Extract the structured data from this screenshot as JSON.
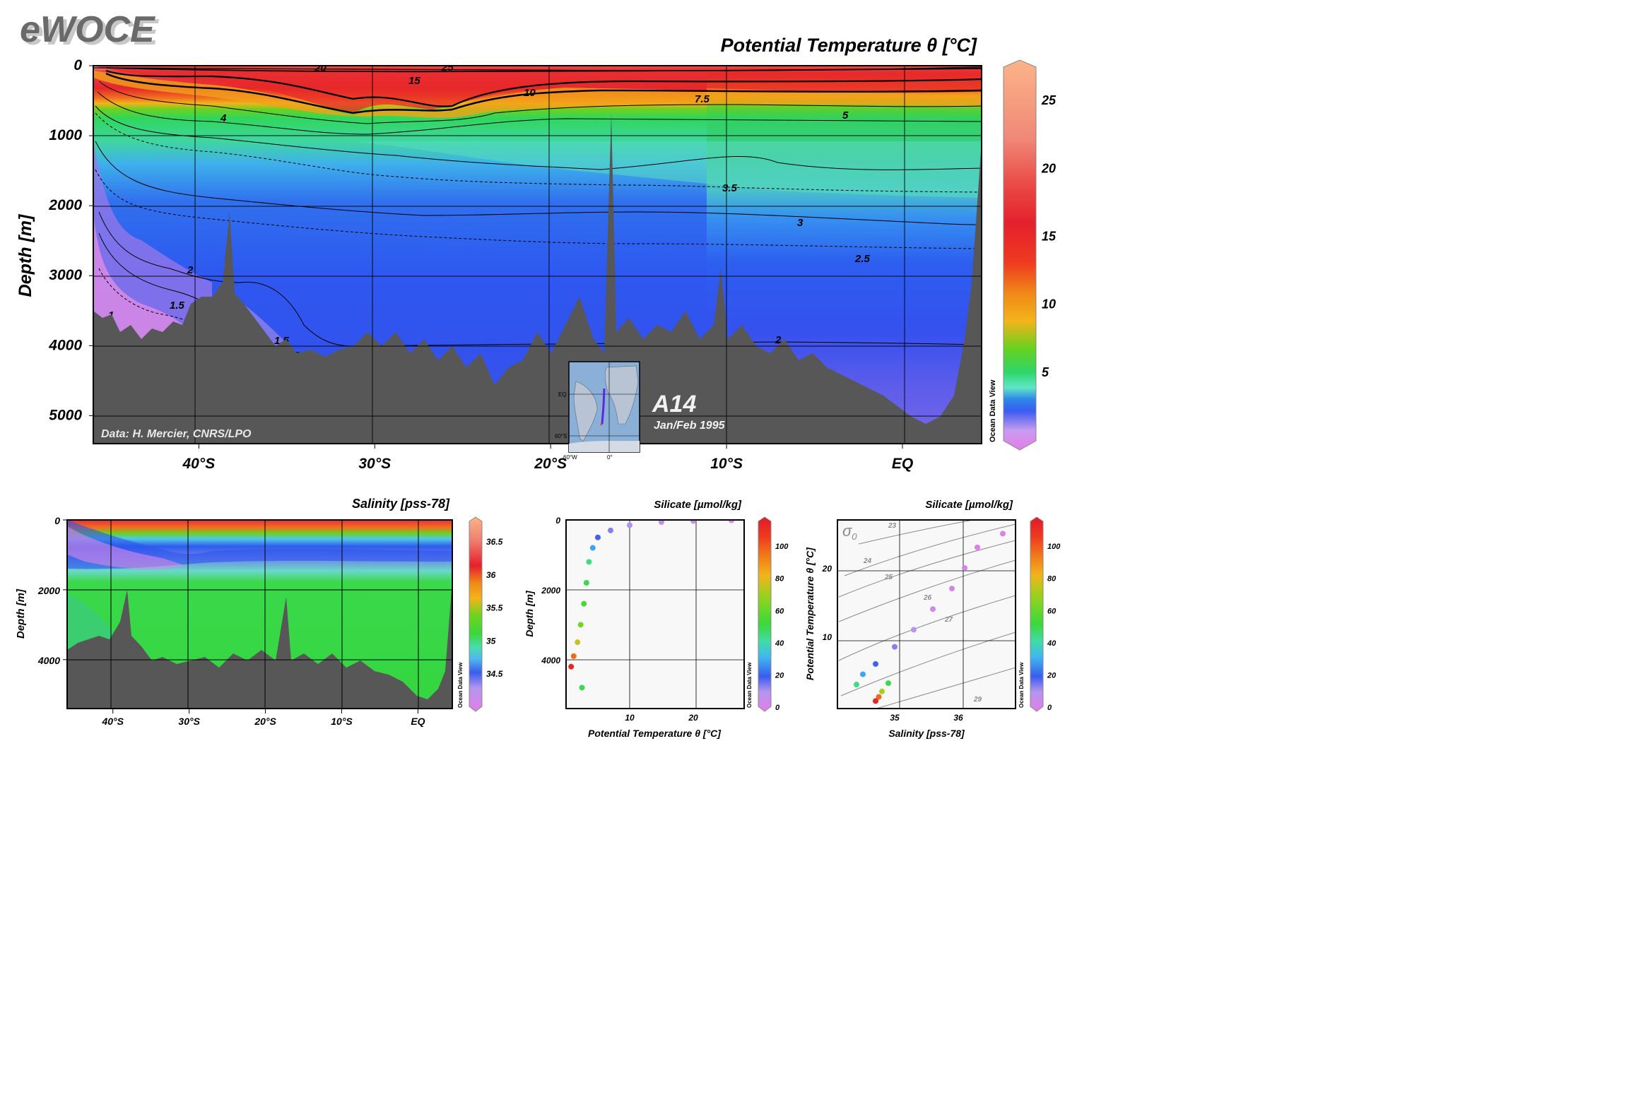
{
  "header": {
    "logo_text": "eWOCE",
    "main_title": "Potential Temperature θ [°C]"
  },
  "main_panel": {
    "ylabel": "Depth [m]",
    "credit": "Data: H. Mercier, CNRS/LPO",
    "section_name": "A14",
    "section_date": "Jan/Feb 1995",
    "colorbar_caption": "Ocean Data View",
    "inset_labels": {
      "eq": "EQ",
      "lat": "60°S",
      "lon_w": "60°W",
      "lon_0": "0°"
    }
  },
  "salinity_panel": {
    "title": "Salinity [pss-78]",
    "ylabel": "Depth [m]",
    "colorbar_caption": "Ocean Data View"
  },
  "silicate_depth_panel": {
    "title": "Silicate [µmol/kg]",
    "xlabel": "Potential Temperature θ [°C]",
    "ylabel": "Depth [m]",
    "colorbar_caption": "Ocean Data View"
  },
  "ts_panel": {
    "title": "Silicate [µmol/kg]",
    "xlabel": "Salinity [pss-78]",
    "ylabel": "Potential Temperature θ [°C]",
    "sigma_label": "σ",
    "sigma_sub": "0",
    "colorbar_caption": "Ocean Data View"
  },
  "chart_data": [
    {
      "type": "heatmap",
      "title": "Potential Temperature θ [°C]",
      "ylabel": "Depth [m]",
      "x_range": [
        -46,
        4.5
      ],
      "xticks": [
        {
          "value": -40,
          "label": "40°S"
        },
        {
          "value": -30,
          "label": "30°S"
        },
        {
          "value": -20,
          "label": "20°S"
        },
        {
          "value": -10,
          "label": "10°S"
        },
        {
          "value": 0,
          "label": "EQ"
        }
      ],
      "ylim": [
        5400,
        0
      ],
      "yticks": [
        0,
        1000,
        2000,
        3000,
        4000,
        5000
      ],
      "colorbar": {
        "ticks": [
          5,
          10,
          15,
          20,
          25
        ],
        "range": [
          0,
          27.5
        ]
      },
      "contours": [
        {
          "label": "25",
          "depth_m": 20
        },
        {
          "label": "20",
          "depth_m": 40
        },
        {
          "label": "15",
          "depth_m": 200
        },
        {
          "label": "10",
          "depth_m": 380
        },
        {
          "label": "7.5",
          "depth_m": 480
        },
        {
          "label": "5",
          "depth_m": 680
        },
        {
          "label": "4",
          "depth_m": 800
        },
        {
          "label": "3.5",
          "depth_m": 1750
        },
        {
          "label": "3",
          "depth_m": 2250
        },
        {
          "label": "2.5",
          "depth_m": 2750
        },
        {
          "label": "2",
          "depth_m": 3900
        },
        {
          "label": "1.5",
          "depth_m": 3400
        },
        {
          "label": "1",
          "depth_m": 3550
        }
      ]
    },
    {
      "type": "heatmap",
      "title": "Salinity [pss-78]",
      "ylabel": "Depth [m]",
      "x_range": [
        -46,
        4.5
      ],
      "xticks": [
        {
          "value": -40,
          "label": "40°S"
        },
        {
          "value": -30,
          "label": "30°S"
        },
        {
          "value": -20,
          "label": "20°S"
        },
        {
          "value": -10,
          "label": "10°S"
        },
        {
          "value": 0,
          "label": "EQ"
        }
      ],
      "ylim": [
        5400,
        0
      ],
      "yticks": [
        0,
        2000,
        4000
      ],
      "colorbar": {
        "ticks": [
          34.5,
          35,
          35.5,
          36,
          36.5
        ],
        "range": [
          34.0,
          36.8
        ]
      }
    },
    {
      "type": "scatter",
      "title": "Silicate [µmol/kg]",
      "xlabel": "Potential Temperature θ [°C]",
      "ylabel": "Depth [m]",
      "xlim": [
        0,
        28
      ],
      "ylim": [
        5400,
        0
      ],
      "xticks": [
        10,
        20
      ],
      "yticks": [
        0,
        2000,
        4000
      ],
      "colorbar": {
        "ticks": [
          0,
          20,
          40,
          60,
          80,
          100
        ],
        "range": [
          0,
          115
        ]
      },
      "series": [
        {
          "values": [
            [
              26,
              10,
              3
            ],
            [
              20,
              30,
              5
            ],
            [
              15,
              60,
              8
            ],
            [
              10,
              150,
              12
            ],
            [
              7,
              300,
              15
            ],
            [
              5,
              500,
              20
            ],
            [
              4.2,
              800,
              30
            ],
            [
              3.6,
              1200,
              45
            ],
            [
              3.2,
              1800,
              50
            ],
            [
              2.8,
              2400,
              55
            ],
            [
              2.3,
              3000,
              62
            ],
            [
              1.8,
              3500,
              75
            ],
            [
              1.2,
              3900,
              95
            ],
            [
              0.8,
              4200,
              110
            ],
            [
              2.5,
              4800,
              50
            ]
          ]
        }
      ]
    },
    {
      "type": "scatter",
      "title": "Silicate [µmol/kg]",
      "xlabel": "Salinity [pss-78]",
      "ylabel": "Potential Temperature θ [°C]",
      "xlim": [
        34.1,
        36.9
      ],
      "ylim": [
        -0.5,
        27
      ],
      "xticks": [
        35,
        36
      ],
      "yticks": [
        10,
        20
      ],
      "colorbar": {
        "ticks": [
          0,
          20,
          40,
          60,
          80,
          100
        ],
        "range": [
          0,
          115
        ]
      },
      "sigma0_isopycnals": [
        "23",
        "24",
        "25",
        "26",
        "27",
        "29"
      ],
      "series": [
        {
          "values": [
            [
              36.7,
              25,
              1
            ],
            [
              36.3,
              23,
              2
            ],
            [
              36.1,
              20,
              3
            ],
            [
              35.9,
              17,
              4
            ],
            [
              35.6,
              14,
              6
            ],
            [
              35.3,
              11,
              10
            ],
            [
              35.0,
              8.5,
              15
            ],
            [
              34.7,
              6,
              22
            ],
            [
              34.5,
              4.5,
              30
            ],
            [
              34.4,
              3,
              45
            ],
            [
              34.9,
              3.2,
              50
            ],
            [
              34.8,
              2,
              70
            ],
            [
              34.75,
              1.2,
              95
            ],
            [
              34.7,
              0.6,
              110
            ]
          ]
        }
      ]
    }
  ]
}
